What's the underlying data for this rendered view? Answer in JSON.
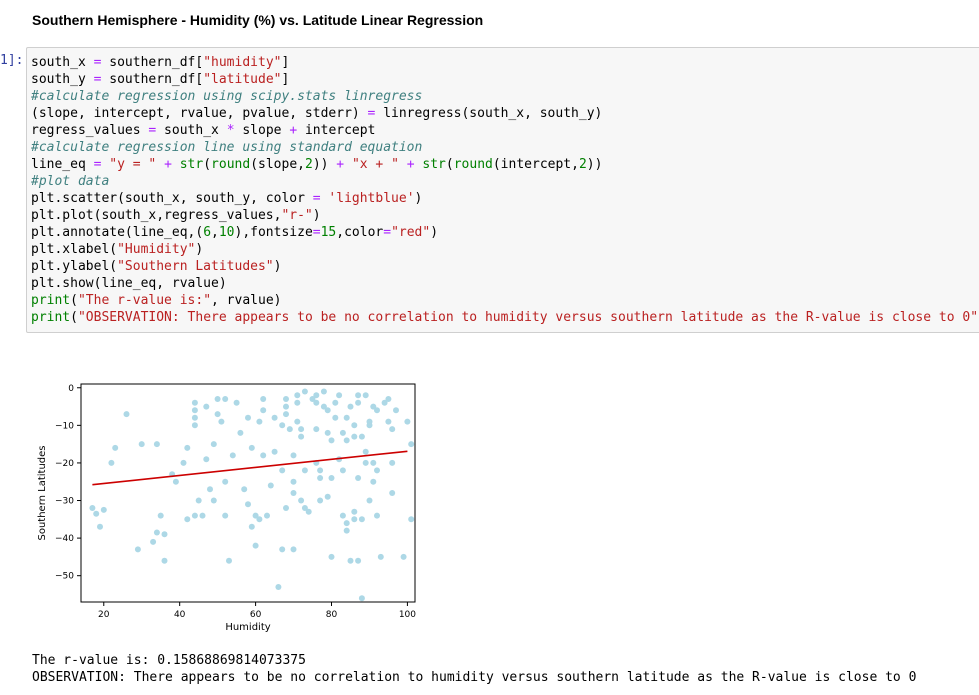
{
  "heading": "Southern Hemisphere - Humidity (%) vs. Latitude Linear Regression",
  "prompt_label": "1]:",
  "code": {
    "l1": [
      "south_x ",
      "=",
      " southern_df[",
      "\"humidity\"",
      "]"
    ],
    "l2": [
      "south_y ",
      "=",
      " southern_df[",
      "\"latitude\"",
      "]"
    ],
    "l3": "#calculate regression using scipy.stats linregress",
    "l4": [
      "(slope, intercept, rvalue, pvalue, stderr) ",
      "=",
      " linregress(south_x, south_y)"
    ],
    "l5": [
      "regress_values ",
      "=",
      " south_x ",
      "*",
      " slope ",
      "+",
      " intercept"
    ],
    "l6": "#calculate regression line using standard equation",
    "l7": [
      "line_eq ",
      "=",
      " ",
      "\"y = \"",
      " ",
      "+",
      " ",
      "str",
      "(",
      "round",
      "(slope,",
      "2",
      ")) ",
      "+",
      " ",
      "\"x + \"",
      " ",
      "+",
      " ",
      "str",
      "(",
      "round",
      "(intercept,",
      "2",
      "))"
    ],
    "l8": "#plot data",
    "l9": [
      "plt.scatter(south_x, south_y, color ",
      "=",
      " ",
      "'lightblue'",
      ")"
    ],
    "l10": [
      "plt.plot(south_x,regress_values,",
      "\"r-\"",
      ")"
    ],
    "l11": [
      "plt.annotate(line_eq,(",
      "6",
      ",",
      "10",
      "),fontsize",
      "=",
      "15",
      ",color",
      "=",
      "\"red\"",
      ")"
    ],
    "l12": [
      "plt.xlabel(",
      "\"Humidity\"",
      ")"
    ],
    "l13": [
      "plt.ylabel(",
      "\"Southern Latitudes\"",
      ")"
    ],
    "l14": "plt.show(line_eq, rvalue)",
    "l15": [
      "print",
      "(",
      "\"The r-value is:\"",
      ", rvalue)"
    ],
    "l16": [
      "print",
      "(",
      "\"OBSERVATION: There appears to be no correlation to humidity versus southern latitude as the R-value is close to 0\"",
      ")"
    ]
  },
  "output": {
    "line1": "The r-value is: 0.15868869814073375",
    "line2": "OBSERVATION: There appears to be no correlation to humidity versus southern latitude as the R-value is close to 0"
  },
  "chart_data": {
    "type": "scatter",
    "xlabel": "Humidity",
    "ylabel": "Southern Latitudes",
    "xlim": [
      14,
      102
    ],
    "ylim": [
      -57,
      1
    ],
    "xticks": [
      20,
      40,
      60,
      80,
      100
    ],
    "yticks": [
      0,
      -10,
      -20,
      -30,
      -40,
      -50
    ],
    "point_color": "#add8e6",
    "line_color": "#cc0000",
    "regression": {
      "x": [
        17,
        100
      ],
      "y": [
        -25.8,
        -16.9
      ]
    },
    "points": [
      [
        17,
        -32
      ],
      [
        18,
        -33.5
      ],
      [
        19,
        -37
      ],
      [
        20,
        -32.5
      ],
      [
        22,
        -20
      ],
      [
        23,
        -16
      ],
      [
        26,
        -7
      ],
      [
        29,
        -43
      ],
      [
        30,
        -15
      ],
      [
        33,
        -41
      ],
      [
        34,
        -15
      ],
      [
        34,
        -38.5
      ],
      [
        35,
        -34
      ],
      [
        36,
        -39
      ],
      [
        36,
        -46
      ],
      [
        38,
        -23
      ],
      [
        39,
        -25
      ],
      [
        41,
        -20
      ],
      [
        42,
        -35
      ],
      [
        42,
        -16
      ],
      [
        44,
        -4
      ],
      [
        44,
        -6
      ],
      [
        44,
        -8
      ],
      [
        44,
        -10
      ],
      [
        44,
        -34
      ],
      [
        45,
        -30
      ],
      [
        46,
        -34
      ],
      [
        47,
        -19
      ],
      [
        47,
        -5
      ],
      [
        48,
        -27
      ],
      [
        49,
        -15
      ],
      [
        49,
        -30
      ],
      [
        50,
        -3
      ],
      [
        50,
        -7
      ],
      [
        51,
        -9
      ],
      [
        52,
        -3
      ],
      [
        52,
        -25
      ],
      [
        52,
        -34
      ],
      [
        53,
        -46
      ],
      [
        54,
        -18
      ],
      [
        55,
        -4
      ],
      [
        56,
        -12
      ],
      [
        57,
        -27
      ],
      [
        58,
        -31
      ],
      [
        58,
        -8
      ],
      [
        59,
        -16
      ],
      [
        59,
        -37
      ],
      [
        60,
        -42
      ],
      [
        60,
        -34
      ],
      [
        61,
        -35
      ],
      [
        61,
        -9
      ],
      [
        62,
        -3
      ],
      [
        62,
        -6
      ],
      [
        62,
        -18
      ],
      [
        63,
        -34
      ],
      [
        64,
        -26
      ],
      [
        65,
        -17
      ],
      [
        65,
        -8
      ],
      [
        66,
        -53
      ],
      [
        67,
        -10
      ],
      [
        67,
        -43
      ],
      [
        67,
        -22
      ],
      [
        68,
        -7
      ],
      [
        68,
        -5
      ],
      [
        68,
        -3
      ],
      [
        68,
        -32
      ],
      [
        69,
        -11
      ],
      [
        70,
        -25
      ],
      [
        70,
        -28
      ],
      [
        70,
        -18
      ],
      [
        70,
        -43
      ],
      [
        71,
        -2
      ],
      [
        71,
        -4
      ],
      [
        71,
        -9
      ],
      [
        72,
        -13
      ],
      [
        72,
        -11
      ],
      [
        72,
        -30
      ],
      [
        73,
        -32
      ],
      [
        73,
        -1
      ],
      [
        73,
        -22
      ],
      [
        74,
        -33
      ],
      [
        75,
        -3
      ],
      [
        76,
        -2
      ],
      [
        76,
        -11
      ],
      [
        76,
        -20
      ],
      [
        76,
        -4
      ],
      [
        77,
        -22
      ],
      [
        77,
        -24
      ],
      [
        77,
        -30
      ],
      [
        78,
        -1
      ],
      [
        78,
        -5
      ],
      [
        79,
        -6
      ],
      [
        79,
        -12
      ],
      [
        79,
        -29
      ],
      [
        80,
        -45
      ],
      [
        80,
        -24
      ],
      [
        80,
        -14
      ],
      [
        81,
        -8
      ],
      [
        81,
        -4
      ],
      [
        82,
        -2
      ],
      [
        82,
        -19
      ],
      [
        83,
        -22
      ],
      [
        83,
        -12
      ],
      [
        83,
        -34
      ],
      [
        84,
        -36
      ],
      [
        84,
        -8
      ],
      [
        84,
        -14
      ],
      [
        84,
        -38
      ],
      [
        85,
        -5
      ],
      [
        85,
        -46
      ],
      [
        86,
        -10
      ],
      [
        86,
        -13
      ],
      [
        86,
        -33
      ],
      [
        86,
        -35
      ],
      [
        87,
        -2
      ],
      [
        87,
        -4
      ],
      [
        87,
        -24
      ],
      [
        87,
        -46
      ],
      [
        88,
        -13
      ],
      [
        88,
        -35
      ],
      [
        88,
        -56
      ],
      [
        89,
        -2
      ],
      [
        89,
        -17
      ],
      [
        89,
        -20
      ],
      [
        90,
        -9
      ],
      [
        90,
        -30
      ],
      [
        90,
        -10
      ],
      [
        91,
        -20
      ],
      [
        91,
        -25
      ],
      [
        91,
        -5
      ],
      [
        92,
        -6
      ],
      [
        92,
        -22
      ],
      [
        92,
        -34
      ],
      [
        93,
        -45
      ],
      [
        94,
        -4
      ],
      [
        95,
        -3
      ],
      [
        95,
        -9
      ],
      [
        96,
        -11
      ],
      [
        96,
        -28
      ],
      [
        96,
        -20
      ],
      [
        97,
        -6
      ],
      [
        99,
        -45
      ],
      [
        100,
        -9
      ],
      [
        101,
        -15
      ],
      [
        101,
        -35
      ]
    ]
  }
}
